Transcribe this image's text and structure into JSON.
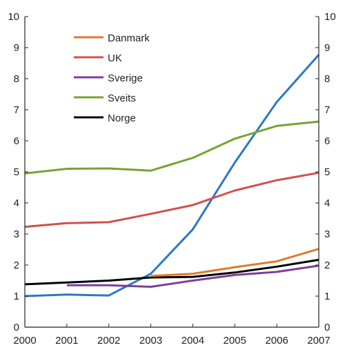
{
  "chart_data": {
    "type": "line",
    "x": [
      2000,
      2001,
      2002,
      2003,
      2004,
      2005,
      2006,
      2007
    ],
    "ylim": [
      0,
      10
    ],
    "yticks": [
      "0",
      "1",
      "2",
      "3",
      "4",
      "5",
      "6",
      "7",
      "8",
      "9",
      "10"
    ],
    "xticks": [
      "2000",
      "2001",
      "2002",
      "2003",
      "2004",
      "2005",
      "2006",
      "2007"
    ],
    "grid": false,
    "legend_position": "top-left",
    "series": [
      {
        "name": "Danmark",
        "color": "#e07b2a",
        "x": [
          2003,
          2004,
          2005,
          2006,
          2007
        ],
        "values": [
          1.65,
          1.72,
          1.93,
          2.12,
          2.52
        ]
      },
      {
        "name": "UK",
        "color": "#d0504f",
        "x": [
          2000,
          2001,
          2002,
          2003,
          2004,
          2005,
          2006,
          2007
        ],
        "values": [
          3.23,
          3.35,
          3.38,
          3.65,
          3.93,
          4.4,
          4.73,
          4.97
        ]
      },
      {
        "name": "Sverige",
        "color": "#7b3f9b",
        "x": [
          2001,
          2002,
          2003,
          2004,
          2005,
          2006,
          2007
        ],
        "values": [
          1.35,
          1.35,
          1.3,
          1.5,
          1.68,
          1.78,
          1.98
        ]
      },
      {
        "name": "Sveits",
        "color": "#78a22f",
        "x": [
          2000,
          2001,
          2002,
          2003,
          2004,
          2005,
          2006,
          2007
        ],
        "values": [
          4.95,
          5.1,
          5.11,
          5.04,
          5.45,
          6.07,
          6.48,
          6.62
        ]
      },
      {
        "name": "Norge",
        "color": "#000000",
        "x": [
          2000,
          2001,
          2002,
          2003,
          2004,
          2005,
          2006,
          2007
        ],
        "values": [
          1.38,
          1.44,
          1.5,
          1.6,
          1.62,
          1.76,
          1.95,
          2.17
        ]
      },
      {
        "name": "",
        "color": "#2b78c0",
        "x": [
          2000,
          2001,
          2002,
          2003,
          2004,
          2005,
          2006,
          2007
        ],
        "values": [
          1.0,
          1.05,
          1.02,
          1.72,
          3.15,
          5.3,
          7.25,
          8.77
        ]
      }
    ]
  }
}
